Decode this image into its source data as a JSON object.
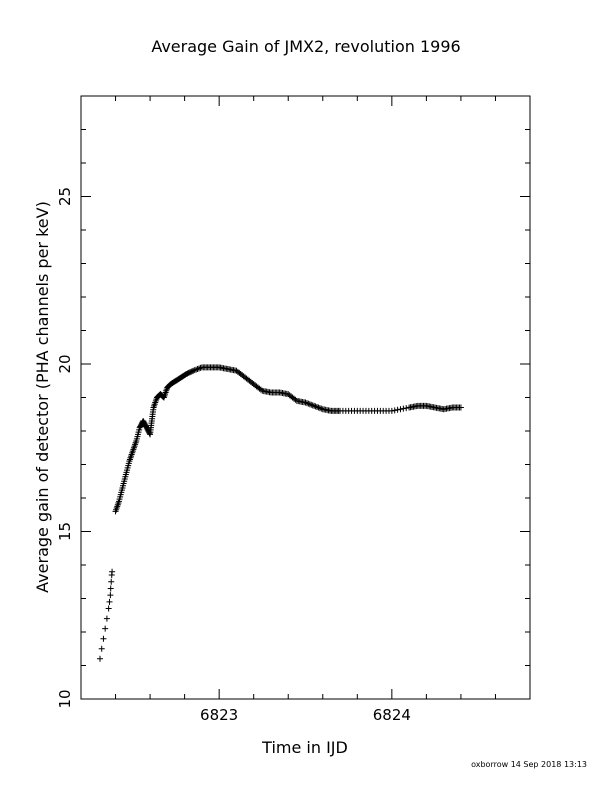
{
  "chart_data": {
    "type": "scatter",
    "title": "Average Gain of JMX2, revolution 1996",
    "xlabel": "Time in IJD",
    "ylabel": "Average gain of detector (PHA channels per keV)",
    "xlim": [
      6822.2,
      6824.8
    ],
    "ylim": [
      10,
      28
    ],
    "x_ticks": [
      6823,
      6824
    ],
    "x_tick_labels": [
      "6823",
      "6824"
    ],
    "y_ticks": [
      15,
      20,
      25
    ],
    "y_tick_labels": [
      "15",
      "20",
      "25"
    ],
    "y_tick_label_10": "10",
    "marker": "plus",
    "grid": false,
    "legend": false,
    "color": "#000000",
    "series": [
      {
        "x": [
          6822.31,
          6822.32,
          6822.33,
          6822.34,
          6822.35,
          6822.36,
          6822.365,
          6822.37,
          6822.372,
          6822.375,
          6822.378,
          6822.38,
          6822.4,
          6822.42,
          6822.44,
          6822.46,
          6822.48,
          6822.5,
          6822.52,
          6822.54,
          6822.56,
          6822.58,
          6822.6,
          6822.61,
          6822.62,
          6822.64,
          6822.66,
          6822.68,
          6822.7,
          6822.72,
          6822.75,
          6822.78,
          6822.81,
          6822.85,
          6822.9,
          6822.95,
          6823.0,
          6823.05,
          6823.1,
          6823.15,
          6823.2,
          6823.25,
          6823.3,
          6823.35,
          6823.4,
          6823.45,
          6823.5,
          6823.55,
          6823.6,
          6823.65,
          6823.7,
          6823.8,
          6823.9,
          6824.0,
          6824.1,
          6824.15,
          6824.2,
          6824.25,
          6824.3,
          6824.35,
          6824.4
        ],
        "y": [
          11.2,
          11.5,
          11.8,
          12.1,
          12.4,
          12.7,
          12.9,
          13.1,
          13.3,
          13.5,
          13.7,
          13.8,
          15.6,
          15.9,
          16.3,
          16.7,
          17.1,
          17.4,
          17.7,
          18.1,
          18.3,
          18.1,
          17.9,
          18.3,
          18.7,
          19.0,
          19.1,
          19.0,
          19.3,
          19.4,
          19.5,
          19.6,
          19.7,
          19.8,
          19.9,
          19.9,
          19.9,
          19.85,
          19.8,
          19.6,
          19.4,
          19.2,
          19.15,
          19.15,
          19.1,
          18.9,
          18.85,
          18.75,
          18.65,
          18.6,
          18.6,
          18.6,
          18.6,
          18.6,
          18.7,
          18.75,
          18.75,
          18.7,
          18.65,
          18.7,
          18.7
        ]
      }
    ]
  },
  "footer": {
    "credit": "oxborrow 14 Sep 2018 13:13"
  }
}
